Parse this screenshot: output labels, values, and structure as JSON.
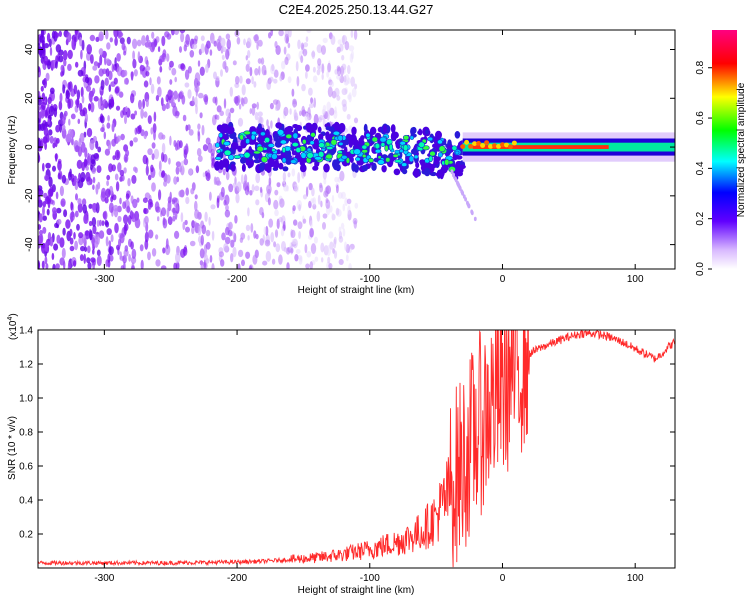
{
  "figure_title": "C2E4.2025.250.13.44.G27",
  "colors": {
    "snr_line": "#ff2a2a",
    "spectro_low": "#6a00e8",
    "spectro_mid": "#00e0c0",
    "spectro_high": "#ff2000"
  },
  "chart_data": [
    {
      "type": "heatmap",
      "name": "spectrogram",
      "xlabel": "Height of straight line (km)",
      "ylabel": "Frequency (Hz)",
      "xlim": [
        -350,
        130
      ],
      "ylim": [
        -50,
        48
      ],
      "xticks": [
        -300,
        -200,
        -100,
        0,
        100
      ],
      "yticks": [
        -40,
        -20,
        0,
        20,
        40
      ],
      "colorbar": {
        "label": "Normalized spectral amplitude",
        "range": [
          0.0,
          0.95
        ],
        "ticks": [
          "0.0",
          "0.2",
          "0.4",
          "0.6",
          "0.8"
        ]
      },
      "features": {
        "noise_region_x": [
          -350,
          -150
        ],
        "signal_band_center_hz": 0,
        "scattered_band_x": [
          -215,
          -30
        ],
        "coherent_band_x": [
          -30,
          130
        ],
        "descending_tail_x": [
          -40,
          -20
        ]
      }
    },
    {
      "type": "line",
      "name": "snr",
      "xlabel": "Height of straight line (km)",
      "ylabel": "SNR (10 * v/v)",
      "y_multiplier": "(x10^4)",
      "xlim": [
        -350,
        130
      ],
      "ylim": [
        0,
        1.4
      ],
      "xticks": [
        -300,
        -200,
        -100,
        0,
        100
      ],
      "yticks": [
        "0.2",
        "0.4",
        "0.6",
        "0.8",
        "1.0",
        "1.2",
        "1.4"
      ],
      "series": [
        {
          "name": "SNR",
          "x": [
            -350,
            -300,
            -250,
            -200,
            -180,
            -160,
            -140,
            -120,
            -100,
            -80,
            -70,
            -60,
            -50,
            -40,
            -30,
            -20,
            -10,
            0,
            5,
            10,
            20,
            30,
            40,
            50,
            60,
            70,
            80,
            90,
            100,
            110,
            115,
            120,
            125,
            130
          ],
          "y": [
            0.03,
            0.03,
            0.03,
            0.035,
            0.04,
            0.05,
            0.06,
            0.08,
            0.11,
            0.15,
            0.18,
            0.22,
            0.3,
            0.45,
            0.62,
            0.8,
            0.95,
            1.05,
            1.12,
            1.18,
            1.26,
            1.3,
            1.33,
            1.36,
            1.38,
            1.38,
            1.36,
            1.33,
            1.29,
            1.25,
            1.23,
            1.26,
            1.3,
            1.33
          ]
        }
      ]
    }
  ],
  "labels": {
    "multiplier_text": "(x10",
    "multiplier_exp": "4",
    "multiplier_close": ")"
  }
}
